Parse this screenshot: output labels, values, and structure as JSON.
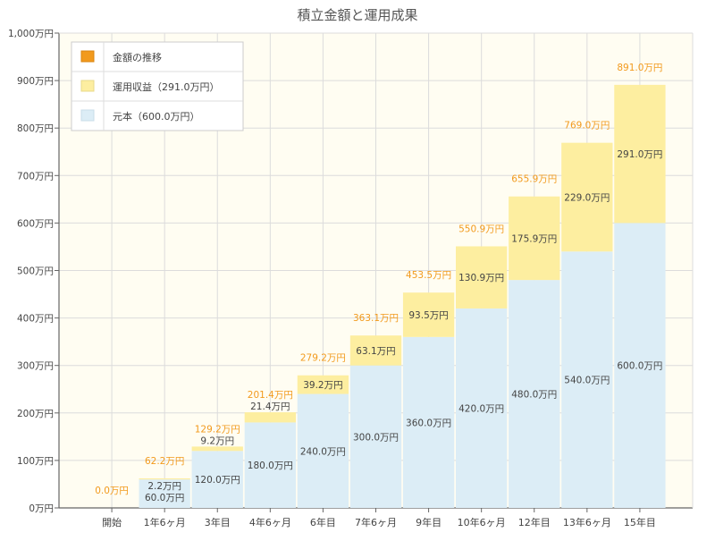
{
  "chart_data": {
    "type": "bar",
    "stacked": true,
    "title": "積立金額と運用成果",
    "categories": [
      "開始",
      "1年6ヶ月",
      "3年目",
      "4年6ヶ月",
      "6年目",
      "7年6ヶ月",
      "9年目",
      "10年6ヶ月",
      "12年目",
      "13年6ヶ月",
      "15年目"
    ],
    "series": [
      {
        "name": "元本（600.0万円）",
        "color": "#dcedf6",
        "values": [
          0,
          60,
          120,
          180,
          240,
          300,
          360,
          420,
          480,
          540,
          600
        ],
        "labels": [
          "",
          "60.0万円",
          "120.0万円",
          "180.0万円",
          "240.0万円",
          "300.0万円",
          "360.0万円",
          "420.0万円",
          "480.0万円",
          "540.0万円",
          "600.0万円"
        ]
      },
      {
        "name": "運用収益（291.0万円）",
        "color": "#fdeea0",
        "values": [
          0,
          2.2,
          9.2,
          21.4,
          39.2,
          63.1,
          93.5,
          130.9,
          175.9,
          229.0,
          291.0
        ],
        "labels": [
          "",
          "2.2万円",
          "9.2万円",
          "21.4万円",
          "39.2万円",
          "63.1万円",
          "93.5万円",
          "130.9万円",
          "175.9万円",
          "229.0万円",
          "291.0万円"
        ]
      }
    ],
    "totals": {
      "name": "金額の推移",
      "color": "#f29a1d",
      "values": [
        0,
        62.2,
        129.2,
        201.4,
        279.2,
        363.1,
        453.5,
        550.9,
        655.9,
        769.0,
        891.0
      ],
      "labels": [
        "0.0万円",
        "62.2万円",
        "129.2万円",
        "201.4万円",
        "279.2万円",
        "363.1万円",
        "453.5万円",
        "550.9万円",
        "655.9万円",
        "769.0万円",
        "891.0万円"
      ]
    },
    "yaxis": {
      "ticks": [
        0,
        100,
        200,
        300,
        400,
        500,
        600,
        700,
        800,
        900,
        1000
      ],
      "tick_labels": [
        "0万円",
        "100万円",
        "200万円",
        "300万円",
        "400万円",
        "500万円",
        "600万円",
        "700万円",
        "800万円",
        "900万円",
        "1,000万円"
      ]
    },
    "ylim": [
      0,
      1000
    ],
    "grid": true,
    "legend_position": "top-left",
    "plot_background": "#fffdf2",
    "grid_color": "#dcdcdc",
    "axis_color": "#666666",
    "label_color": "#444444"
  }
}
